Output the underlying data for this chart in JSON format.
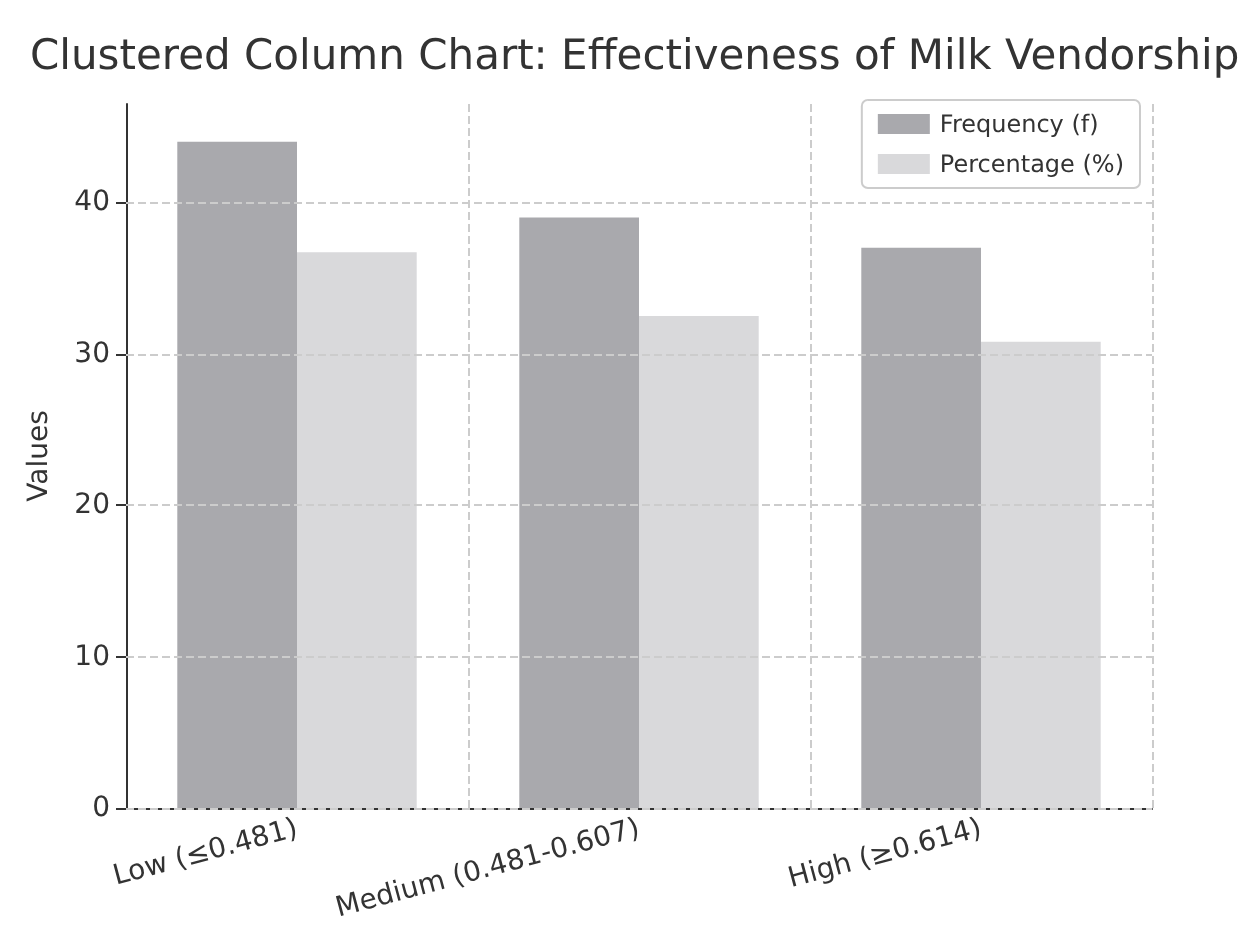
{
  "chart_data": {
    "type": "bar",
    "title": "Clustered Column Chart: Effectiveness of Milk Vendorship",
    "ylabel": "Values",
    "categories": [
      "Low (≤0.481)",
      "Medium (0.481-0.607)",
      "High (≥0.614)"
    ],
    "series": [
      {
        "name": "Frequency (f)",
        "color": "#a9a9ad",
        "values": [
          44,
          39,
          37
        ]
      },
      {
        "name": "Percentage (%)",
        "color": "#d9d9db",
        "values": [
          36.7,
          32.5,
          30.8
        ]
      }
    ],
    "ylim": [
      0,
      46.5
    ],
    "yticks": [
      0,
      10,
      20,
      30,
      40
    ],
    "grid": true,
    "legend": "top right"
  }
}
